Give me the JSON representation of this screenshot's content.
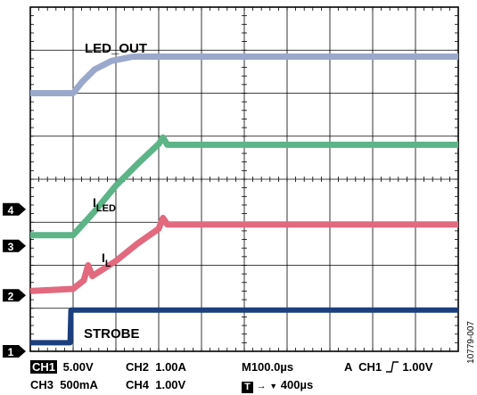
{
  "chart_data": {
    "type": "line",
    "title": "",
    "xlabel": "",
    "ylabel": "",
    "divisions": {
      "x": 10,
      "y": 8
    },
    "x_unit": "µs",
    "x_per_div": 100,
    "series": [
      {
        "name": "LED_OUT",
        "color": "#9aa8cc",
        "points": [
          [
            0,
            6.0
          ],
          [
            1,
            6.0
          ],
          [
            1.2,
            6.25
          ],
          [
            1.5,
            6.55
          ],
          [
            1.9,
            6.75
          ],
          [
            2.4,
            6.85
          ],
          [
            4,
            6.85
          ],
          [
            10,
            6.85
          ]
        ]
      },
      {
        "name": "I_LED",
        "color": "#5cb487",
        "label_main": "I",
        "label_sub": "LED",
        "points": [
          [
            0,
            2.7
          ],
          [
            1,
            2.7
          ],
          [
            1.5,
            3.25
          ],
          [
            2.0,
            3.85
          ],
          [
            2.5,
            4.35
          ],
          [
            3.0,
            4.82
          ],
          [
            3.1,
            4.97
          ],
          [
            3.2,
            4.8
          ],
          [
            10,
            4.8
          ]
        ]
      },
      {
        "name": "I_L",
        "color": "#e2697e",
        "label_main": "I",
        "label_sub": "L",
        "points": [
          [
            0,
            1.4
          ],
          [
            1,
            1.45
          ],
          [
            1.25,
            1.65
          ],
          [
            1.35,
            2.0
          ],
          [
            1.45,
            1.75
          ],
          [
            2.0,
            2.1
          ],
          [
            2.5,
            2.5
          ],
          [
            3.0,
            2.85
          ],
          [
            3.1,
            3.1
          ],
          [
            3.2,
            2.95
          ],
          [
            10,
            2.95
          ]
        ]
      },
      {
        "name": "STROBE",
        "color": "#1b3f7e",
        "points": [
          [
            0,
            0.2
          ],
          [
            0.93,
            0.2
          ],
          [
            0.95,
            0.96
          ],
          [
            10,
            0.96
          ]
        ]
      }
    ],
    "channel_markers": [
      {
        "num": "1",
        "level": 0.0
      },
      {
        "num": "2",
        "level": 1.3
      },
      {
        "num": "3",
        "level": 2.45
      },
      {
        "num": "4",
        "level": 3.3
      }
    ]
  },
  "status": {
    "ch1_tag": "CH1",
    "ch1_scale": "5.00V",
    "ch2": "CH2  1.00A",
    "timebase": "M100.0µs",
    "trigger_prefix": "A  CH1",
    "trigger_level": "1.00V",
    "ch3": "CH3  500mA",
    "ch4": "CH4  1.00V",
    "t_tag": "T",
    "trigger_pos": "400µs"
  },
  "figure_id": "10779-007"
}
